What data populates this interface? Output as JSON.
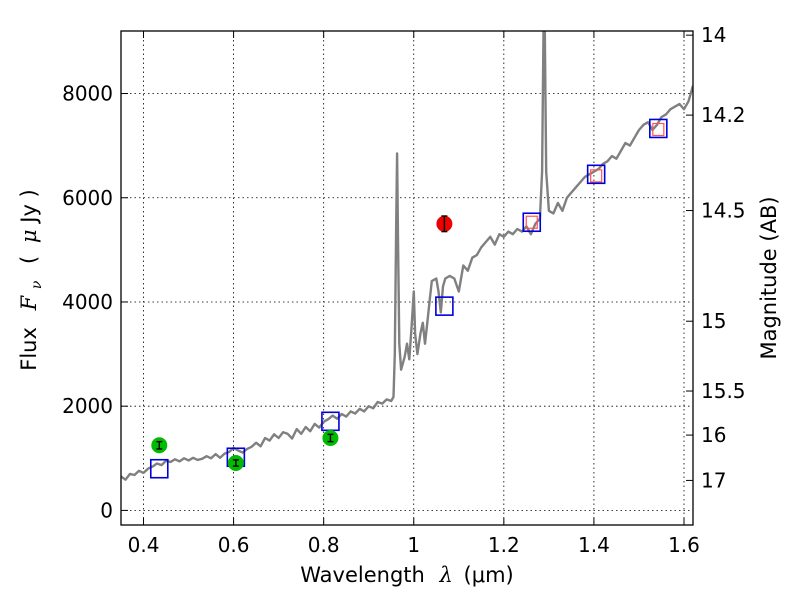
{
  "chart_data": {
    "type": "scatter",
    "x_axis": {
      "label_prefix": "Wavelength",
      "label_symbol": "λ",
      "label_unit": "(μm)",
      "range": [
        0.35,
        1.62
      ],
      "ticks": [
        0.4,
        0.6,
        0.8,
        1.0,
        1.2,
        1.4,
        1.6
      ],
      "tick_labels": [
        "0.4",
        "0.6",
        "0.8",
        "1",
        "1.2",
        "1.4",
        "1.6"
      ]
    },
    "y_axis": {
      "label_prefix": "Flux",
      "label_symbol": "F",
      "label_subscript": "ν",
      "label_unit_open": "(",
      "label_unit_mu": "μ",
      "label_unit_rest": "Jy )",
      "range": [
        -280,
        9200
      ],
      "ticks": [
        0,
        2000,
        4000,
        6000,
        8000
      ],
      "tick_labels": [
        "0",
        "2000",
        "4000",
        "6000",
        "8000"
      ]
    },
    "y2_axis": {
      "label": "Magnitude (AB)",
      "ticks": [
        14,
        14.2,
        14.5,
        15,
        15.5,
        16,
        17
      ],
      "tick_labels": [
        "14",
        "14.2",
        "14.5",
        "15",
        "15.5",
        "16",
        "17"
      ]
    },
    "grid": true,
    "colors": {
      "spectrum": "#808080",
      "blue_squares": "#0000dd",
      "red_squares": "#ff5555",
      "green_points": "#00bb00",
      "red_point": "#ee0000",
      "errorbar": "#000000"
    },
    "series": [
      {
        "kind": "spectrum-line",
        "points": [
          [
            0.35,
            650
          ],
          [
            0.36,
            590
          ],
          [
            0.37,
            700
          ],
          [
            0.38,
            680
          ],
          [
            0.39,
            760
          ],
          [
            0.4,
            720
          ],
          [
            0.41,
            800
          ],
          [
            0.42,
            840
          ],
          [
            0.43,
            900
          ],
          [
            0.44,
            870
          ],
          [
            0.45,
            950
          ],
          [
            0.46,
            930
          ],
          [
            0.47,
            980
          ],
          [
            0.48,
            940
          ],
          [
            0.49,
            1000
          ],
          [
            0.5,
            960
          ],
          [
            0.51,
            1010
          ],
          [
            0.52,
            970
          ],
          [
            0.53,
            990
          ],
          [
            0.54,
            1040
          ],
          [
            0.55,
            1000
          ],
          [
            0.56,
            1080
          ],
          [
            0.57,
            1010
          ],
          [
            0.58,
            1090
          ],
          [
            0.59,
            1120
          ],
          [
            0.6,
            1200
          ],
          [
            0.61,
            1150
          ],
          [
            0.62,
            1110
          ],
          [
            0.63,
            1180
          ],
          [
            0.64,
            1220
          ],
          [
            0.65,
            1300
          ],
          [
            0.66,
            1230
          ],
          [
            0.67,
            1390
          ],
          [
            0.68,
            1340
          ],
          [
            0.69,
            1460
          ],
          [
            0.7,
            1390
          ],
          [
            0.71,
            1500
          ],
          [
            0.72,
            1470
          ],
          [
            0.73,
            1380
          ],
          [
            0.74,
            1560
          ],
          [
            0.75,
            1470
          ],
          [
            0.76,
            1600
          ],
          [
            0.77,
            1520
          ],
          [
            0.78,
            1660
          ],
          [
            0.79,
            1590
          ],
          [
            0.8,
            1700
          ],
          [
            0.81,
            1750
          ],
          [
            0.82,
            1820
          ],
          [
            0.83,
            1760
          ],
          [
            0.84,
            1850
          ],
          [
            0.85,
            1800
          ],
          [
            0.86,
            1900
          ],
          [
            0.87,
            1860
          ],
          [
            0.88,
            1950
          ],
          [
            0.89,
            1900
          ],
          [
            0.9,
            2000
          ],
          [
            0.91,
            1960
          ],
          [
            0.92,
            2080
          ],
          [
            0.93,
            2050
          ],
          [
            0.94,
            2130
          ],
          [
            0.95,
            2100
          ],
          [
            0.955,
            2180
          ],
          [
            0.958,
            3000
          ],
          [
            0.961,
            5500
          ],
          [
            0.963,
            6850
          ],
          [
            0.965,
            5200
          ],
          [
            0.968,
            3200
          ],
          [
            0.972,
            2700
          ],
          [
            0.98,
            2950
          ],
          [
            0.985,
            3200
          ],
          [
            0.99,
            2900
          ],
          [
            0.995,
            3500
          ],
          [
            1.0,
            4200
          ],
          [
            1.003,
            3400
          ],
          [
            1.008,
            3000
          ],
          [
            1.015,
            3400
          ],
          [
            1.02,
            3600
          ],
          [
            1.025,
            3200
          ],
          [
            1.03,
            3600
          ],
          [
            1.035,
            4000
          ],
          [
            1.04,
            4400
          ],
          [
            1.05,
            4450
          ],
          [
            1.055,
            4200
          ],
          [
            1.06,
            3800
          ],
          [
            1.065,
            4300
          ],
          [
            1.07,
            4450
          ],
          [
            1.08,
            4500
          ],
          [
            1.09,
            4450
          ],
          [
            1.1,
            4200
          ],
          [
            1.11,
            4700
          ],
          [
            1.12,
            4600
          ],
          [
            1.13,
            4850
          ],
          [
            1.14,
            4900
          ],
          [
            1.15,
            5050
          ],
          [
            1.16,
            5150
          ],
          [
            1.17,
            5250
          ],
          [
            1.18,
            5100
          ],
          [
            1.19,
            5300
          ],
          [
            1.2,
            5250
          ],
          [
            1.21,
            5350
          ],
          [
            1.22,
            5300
          ],
          [
            1.23,
            5400
          ],
          [
            1.24,
            5350
          ],
          [
            1.25,
            5450
          ],
          [
            1.26,
            5300
          ],
          [
            1.27,
            5500
          ],
          [
            1.28,
            5600
          ],
          [
            1.285,
            6500
          ],
          [
            1.288,
            9200
          ],
          [
            1.291,
            9200
          ],
          [
            1.294,
            6500
          ],
          [
            1.3,
            5750
          ],
          [
            1.31,
            5700
          ],
          [
            1.32,
            5900
          ],
          [
            1.33,
            5750
          ],
          [
            1.34,
            6000
          ],
          [
            1.35,
            6100
          ],
          [
            1.36,
            6200
          ],
          [
            1.37,
            6300
          ],
          [
            1.38,
            6400
          ],
          [
            1.39,
            6450
          ],
          [
            1.4,
            6500
          ],
          [
            1.41,
            6550
          ],
          [
            1.42,
            6650
          ],
          [
            1.43,
            6700
          ],
          [
            1.44,
            6800
          ],
          [
            1.45,
            6750
          ],
          [
            1.46,
            6900
          ],
          [
            1.47,
            7050
          ],
          [
            1.48,
            7000
          ],
          [
            1.49,
            7150
          ],
          [
            1.5,
            7300
          ],
          [
            1.51,
            7400
          ],
          [
            1.52,
            7450
          ],
          [
            1.53,
            7300
          ],
          [
            1.54,
            7400
          ],
          [
            1.55,
            7550
          ],
          [
            1.56,
            7600
          ],
          [
            1.57,
            7700
          ],
          [
            1.58,
            7750
          ],
          [
            1.59,
            7800
          ],
          [
            1.6,
            7700
          ],
          [
            1.61,
            7850
          ],
          [
            1.62,
            8150
          ]
        ]
      },
      {
        "kind": "blue-square",
        "points": [
          [
            0.435,
            800
          ],
          [
            0.605,
            1020
          ],
          [
            0.815,
            1710
          ],
          [
            1.068,
            3920
          ],
          [
            1.262,
            5530
          ],
          [
            1.405,
            6450
          ],
          [
            1.543,
            7330
          ]
        ]
      },
      {
        "kind": "red-square",
        "points": [
          [
            1.262,
            5530
          ],
          [
            1.405,
            6420
          ],
          [
            1.543,
            7310
          ]
        ]
      },
      {
        "kind": "green-point",
        "points": [
          {
            "x": 0.435,
            "y": 1250,
            "err": 70
          },
          {
            "x": 0.605,
            "y": 910,
            "err": 60
          },
          {
            "x": 0.815,
            "y": 1390,
            "err": 70
          }
        ]
      },
      {
        "kind": "red-point",
        "points": [
          {
            "x": 1.068,
            "y": 5500,
            "err": 150
          }
        ]
      }
    ]
  }
}
